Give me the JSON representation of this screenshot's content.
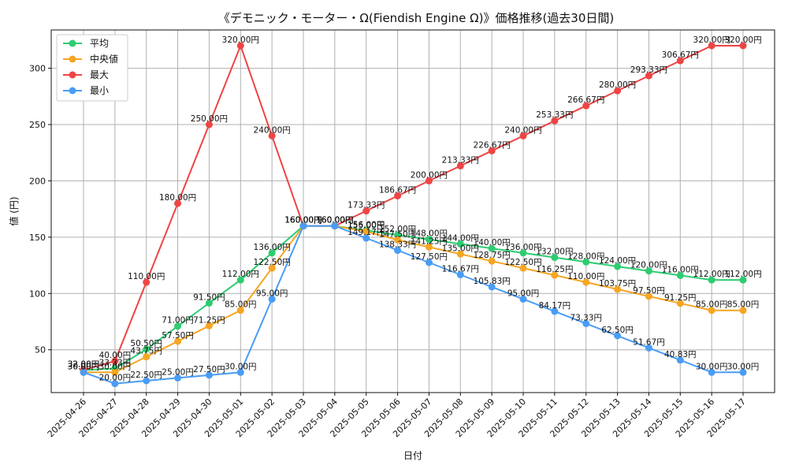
{
  "chart_data": {
    "type": "line",
    "title": "《デモニック・モーター・Ω(Fiendish Engine Ω)》価格推移(過去30日間)",
    "xlabel": "日付",
    "ylabel": "値 (円)",
    "value_suffix": "円",
    "ylim": [
      12,
      334
    ],
    "yticks": [
      50,
      100,
      150,
      200,
      250,
      300
    ],
    "grid": true,
    "legend_position": "top-left",
    "categories": [
      "2025-04-26",
      "2025-04-27",
      "2025-04-28",
      "2025-04-29",
      "2025-04-30",
      "2025-05-01",
      "2025-05-02",
      "2025-05-03",
      "2025-05-04",
      "2025-05-05",
      "2025-05-06",
      "2025-05-07",
      "2025-05-08",
      "2025-05-09",
      "2025-05-10",
      "2025-05-11",
      "2025-05-12",
      "2025-05-13",
      "2025-05-14",
      "2025-05-15",
      "2025-05-16",
      "2025-05-17"
    ],
    "series": [
      {
        "name": "平均",
        "color": "#2ecc71",
        "values": [
          32.0,
          33.33,
          50.5,
          71.0,
          91.5,
          112.0,
          136.0,
          160.0,
          160.0,
          156.0,
          152.0,
          148.0,
          144.0,
          140.0,
          136.0,
          132.0,
          128.0,
          124.0,
          120.0,
          116.0,
          112.0,
          112.0
        ]
      },
      {
        "name": "中央値",
        "color": "#f5a623",
        "values": [
          30.0,
          30.0,
          43.75,
          57.5,
          71.25,
          85.0,
          122.5,
          160.0,
          160.0,
          155.0,
          147.5,
          141.25,
          135.0,
          128.75,
          122.5,
          116.25,
          110.0,
          103.75,
          97.5,
          91.25,
          85.0,
          85.0
        ]
      },
      {
        "name": "最大",
        "color": "#ef4444",
        "values": [
          32.0,
          40.0,
          110.0,
          180.0,
          250.0,
          320.0,
          240.0,
          160.0,
          160.0,
          173.33,
          186.67,
          200.0,
          213.33,
          226.67,
          240.0,
          253.33,
          266.67,
          280.0,
          293.33,
          306.67,
          320.0,
          320.0
        ]
      },
      {
        "name": "最小",
        "color": "#4a9cf5",
        "values": [
          30.0,
          20.0,
          22.5,
          25.0,
          27.5,
          30.0,
          95.0,
          160.0,
          160.0,
          149.17,
          138.33,
          127.5,
          116.67,
          105.83,
          95.0,
          84.17,
          73.33,
          62.5,
          51.67,
          40.83,
          30.0,
          30.0
        ]
      }
    ]
  }
}
